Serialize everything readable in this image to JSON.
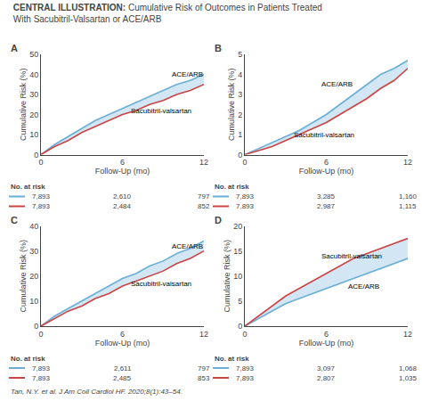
{
  "title": "CENTRAL ILLUSTRATION: Cumulative Risk of Outcomes in Patients Treated\nWith Sacubitril-Valsartan or ACE/ARB",
  "annotations": [
    "Tan, N.Y. et al. J Am Coll Cardiol HF. 2020;8(1):43–54."
  ],
  "chart_data": [
    {
      "type": "line",
      "title": "A",
      "xlabel": "Follow-Up (mo)",
      "ylabel": "Cumulative Risk (%)",
      "x": [
        0,
        1,
        2,
        3,
        4,
        5,
        6,
        7,
        8,
        9,
        10,
        11,
        12
      ],
      "series": [
        {
          "name": "ACE/ARB",
          "color": "#6baed6",
          "values": [
            0,
            5,
            9,
            13,
            17,
            20,
            23,
            26,
            29,
            32,
            35,
            37,
            40
          ]
        },
        {
          "name": "Sacubitril-valsartan",
          "color": "#cb4444",
          "values": [
            0,
            4,
            7,
            11,
            14,
            17,
            20,
            22,
            25,
            27,
            30,
            32,
            35
          ]
        }
      ],
      "xlim": [
        0,
        12
      ],
      "xticks": [
        0,
        6,
        12
      ],
      "ylim": [
        0,
        50
      ],
      "yticks": [
        0,
        10,
        20,
        30,
        40,
        50
      ],
      "grid": false,
      "annotations": [
        {
          "text": "ACE/ARB",
          "x": 9.5,
          "y": 40
        },
        {
          "text": "Sacubitril-valsartan",
          "x": 6.5,
          "y": 22
        }
      ],
      "at_risk": {
        "title": "No. at risk",
        "values": [
          [
            "7,893",
            "2,610",
            "797"
          ],
          [
            "7,893",
            "2,484",
            "852"
          ]
        ]
      }
    },
    {
      "type": "line",
      "title": "B",
      "xlabel": "Follow-Up (mo)",
      "ylabel": "Cumulative Risk (%)",
      "x": [
        0,
        1,
        2,
        3,
        4,
        5,
        6,
        7,
        8,
        9,
        10,
        11,
        12
      ],
      "series": [
        {
          "name": "ACE/ARB",
          "color": "#6baed6",
          "values": [
            0,
            0.3,
            0.6,
            0.9,
            1.2,
            1.6,
            2.0,
            2.5,
            3.0,
            3.5,
            4.0,
            4.3,
            4.7
          ]
        },
        {
          "name": "Sacubitril-valsartan",
          "color": "#cb4444",
          "values": [
            0,
            0.2,
            0.4,
            0.7,
            1.0,
            1.3,
            1.6,
            2.0,
            2.4,
            2.8,
            3.3,
            3.7,
            4.3
          ]
        }
      ],
      "xlim": [
        0,
        12
      ],
      "xticks": [
        0,
        6,
        12
      ],
      "ylim": [
        0,
        5
      ],
      "yticks": [
        0,
        1,
        2,
        3,
        4,
        5
      ],
      "grid": false,
      "annotations": [
        {
          "text": "ACE/ARB",
          "x": 5.5,
          "y": 3.5
        },
        {
          "text": "Sacubitril-valsartan",
          "x": 3.5,
          "y": 1.0
        }
      ],
      "at_risk": {
        "title": "No. at risk",
        "values": [
          [
            "7,893",
            "3,285",
            "1,160"
          ],
          [
            "7,893",
            "2,987",
            "1,115"
          ]
        ]
      }
    },
    {
      "type": "line",
      "title": "C",
      "xlabel": "Follow-Up (mo)",
      "ylabel": "Cumulative Risk (%)",
      "x": [
        0,
        1,
        2,
        3,
        4,
        5,
        6,
        7,
        8,
        9,
        10,
        11,
        12
      ],
      "series": [
        {
          "name": "ACE/ARB",
          "color": "#6baed6",
          "values": [
            0,
            4,
            7,
            10,
            13,
            16,
            19,
            21,
            24,
            26,
            29,
            31,
            34
          ]
        },
        {
          "name": "Sacubitril-valsartan",
          "color": "#cb4444",
          "values": [
            0,
            3,
            6,
            8,
            11,
            13,
            16,
            18,
            20,
            22,
            25,
            27,
            30
          ]
        }
      ],
      "xlim": [
        0,
        12
      ],
      "xticks": [
        0,
        6,
        12
      ],
      "ylim": [
        0,
        40
      ],
      "yticks": [
        0,
        10,
        20,
        30,
        40
      ],
      "grid": false,
      "annotations": [
        {
          "text": "ACE/ARB",
          "x": 9.5,
          "y": 32
        },
        {
          "text": "Sacubitril-valsartan",
          "x": 6.5,
          "y": 17
        }
      ],
      "at_risk": {
        "title": "No. at risk",
        "values": [
          [
            "7,893",
            "2,611",
            "797"
          ],
          [
            "7,893",
            "2,485",
            "853"
          ]
        ]
      }
    },
    {
      "type": "line",
      "title": "D",
      "xlabel": "Follow-Up (mo)",
      "ylabel": "Cumulative Risk (%)",
      "x": [
        0,
        1,
        2,
        3,
        4,
        5,
        6,
        7,
        8,
        9,
        10,
        11,
        12
      ],
      "series": [
        {
          "name": "ACE/ARB",
          "color": "#6baed6",
          "values": [
            0,
            1.5,
            3,
            4.5,
            5.5,
            6.5,
            7.5,
            8.5,
            9.5,
            10.5,
            11.5,
            12.5,
            13.5
          ]
        },
        {
          "name": "Sacubitril-valsartan",
          "color": "#cb4444",
          "values": [
            0,
            2,
            4,
            6,
            7.5,
            9,
            10.5,
            12,
            13.5,
            14.5,
            15.5,
            16.5,
            17.5
          ]
        }
      ],
      "xlim": [
        0,
        12
      ],
      "xticks": [
        0,
        6,
        12
      ],
      "ylim": [
        0,
        20
      ],
      "yticks": [
        0,
        5,
        10,
        15,
        20
      ],
      "grid": false,
      "annotations": [
        {
          "text": "ACE/ARB",
          "x": 7.5,
          "y": 8
        },
        {
          "text": "Sacubitril-valsartan",
          "x": 5.5,
          "y": 14
        }
      ],
      "at_risk": {
        "title": "No. at risk",
        "values": [
          [
            "7,893",
            "3,097",
            "1,068"
          ],
          [
            "7,893",
            "2,807",
            "1,035"
          ]
        ]
      }
    }
  ]
}
